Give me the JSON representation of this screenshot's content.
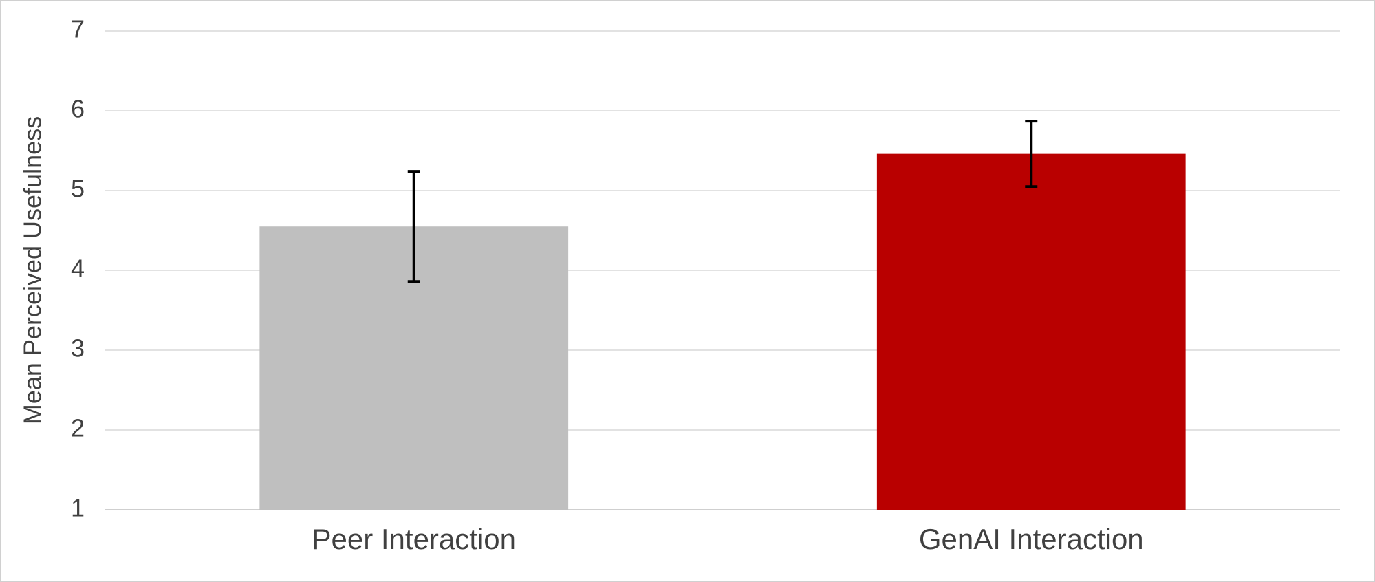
{
  "chart_data": {
    "type": "bar",
    "y_label": "Mean Perceived Usefulness",
    "categories": [
      "Peer Interaction",
      "GenAI Interaction"
    ],
    "values": [
      4.55,
      5.46
    ],
    "errors": [
      0.69,
      0.41
    ],
    "colors": [
      "#bfbfbf",
      "#b90000"
    ],
    "ylim": [
      1,
      7
    ],
    "yticks": [
      1,
      2,
      3,
      4,
      5,
      6,
      7
    ],
    "grid": true
  }
}
